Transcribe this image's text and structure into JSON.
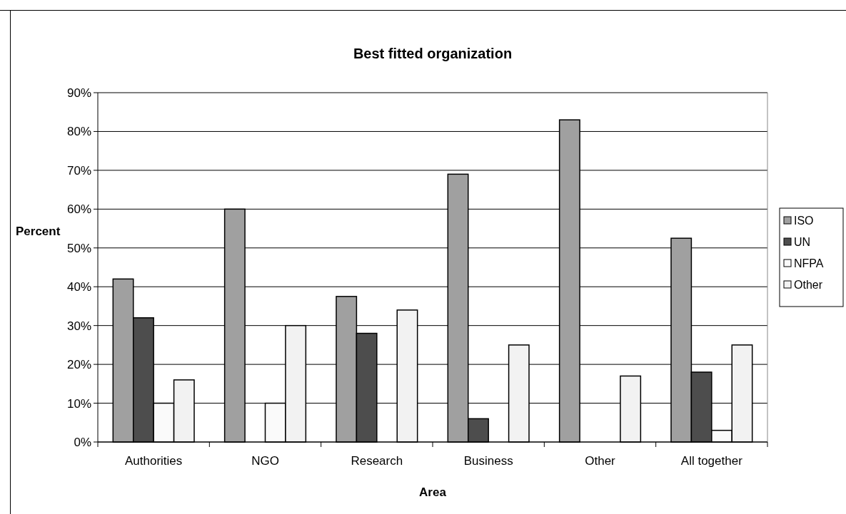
{
  "chart_data": {
    "type": "bar",
    "title": "Best fitted organization",
    "xlabel": "Area",
    "ylabel": "Percent",
    "categories": [
      "Authorities",
      "NGO",
      "Research",
      "Business",
      "Other",
      "All together"
    ],
    "series": [
      {
        "name": "ISO",
        "color": "#a0a0a0",
        "values": [
          42,
          60,
          37.5,
          69,
          83,
          52.5
        ]
      },
      {
        "name": "UN",
        "color": "#4d4d4d",
        "values": [
          32,
          0,
          28,
          6,
          0,
          18
        ]
      },
      {
        "name": "NFPA",
        "color": "#fafafa",
        "values": [
          10,
          10,
          0,
          0,
          0,
          3
        ]
      },
      {
        "name": "Other",
        "color": "#f2f2f2",
        "values": [
          16,
          30,
          34,
          25,
          17,
          25
        ]
      }
    ],
    "ylim": [
      0,
      90
    ],
    "yticks": [
      {
        "value": 0,
        "label": "0%"
      },
      {
        "value": 10,
        "label": "10%"
      },
      {
        "value": 20,
        "label": "20%"
      },
      {
        "value": 30,
        "label": "30%"
      },
      {
        "value": 40,
        "label": "40%"
      },
      {
        "value": 50,
        "label": "50%"
      },
      {
        "value": 60,
        "label": "60%"
      },
      {
        "value": 70,
        "label": "70%"
      },
      {
        "value": 80,
        "label": "80%"
      },
      {
        "value": 90,
        "label": "90%"
      }
    ],
    "grid": "y",
    "legend": "right"
  }
}
